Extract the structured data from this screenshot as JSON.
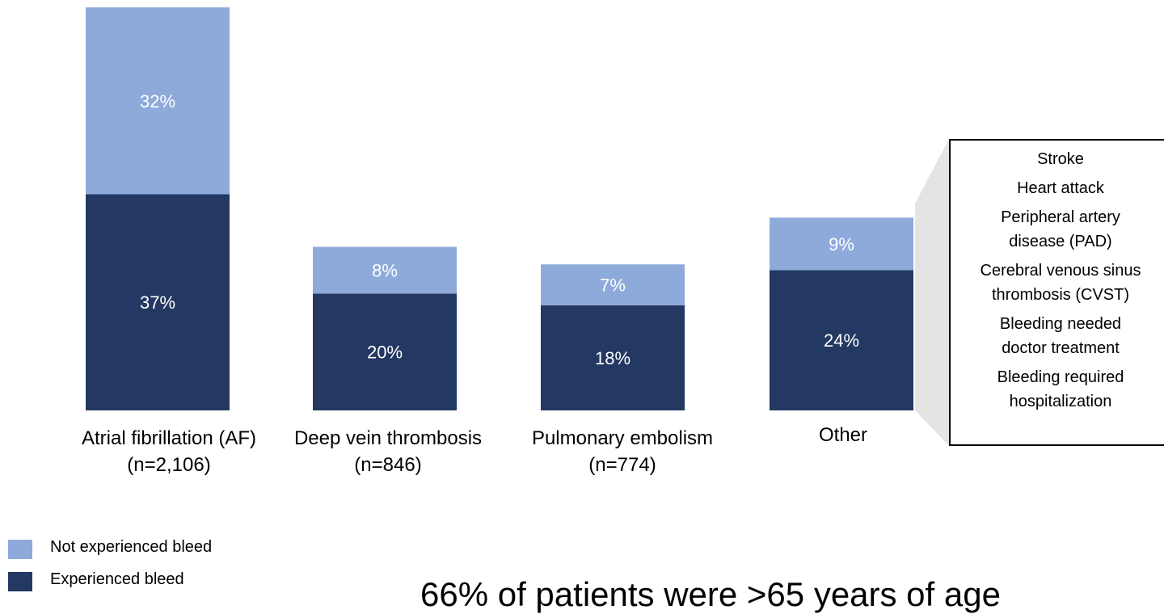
{
  "chart_data": {
    "type": "bar",
    "stacked": true,
    "categories": [
      [
        "Atrial fibrillation (AF)",
        "(n=2,106)"
      ],
      [
        "Deep vein thrombosis",
        "(n=846)"
      ],
      [
        "Pulmonary embolism",
        "(n=774)"
      ],
      [
        "Other"
      ]
    ],
    "series": [
      {
        "name": "Experienced bleed",
        "color": "#233862",
        "values": [
          37,
          20,
          18,
          24
        ],
        "labels": [
          "37%",
          "20%",
          "18%",
          "24%"
        ]
      },
      {
        "name": "Not experienced bleed",
        "color": "#8eaadb",
        "values": [
          32,
          8,
          7,
          9
        ],
        "labels": [
          "32%",
          "8%",
          "7%",
          "9%"
        ]
      }
    ],
    "title": "",
    "xlabel": "",
    "ylabel": "",
    "ylim": [
      0,
      69
    ],
    "grid": false,
    "legend_position": "bottom-left"
  },
  "callout": {
    "items": [
      "Stroke",
      "Heart attack",
      "Peripheral artery disease (PAD)",
      "Cerebral venous sinus thrombosis (CVST)",
      "Bleeding needed doctor treatment",
      "Bleeding required hospitalization"
    ]
  },
  "legend": {
    "items": [
      {
        "label": "Not experienced bleed",
        "color": "#8eaadb"
      },
      {
        "label": "Experienced bleed",
        "color": "#233862"
      }
    ]
  },
  "footnote": "66% of patients were >65 years of age"
}
